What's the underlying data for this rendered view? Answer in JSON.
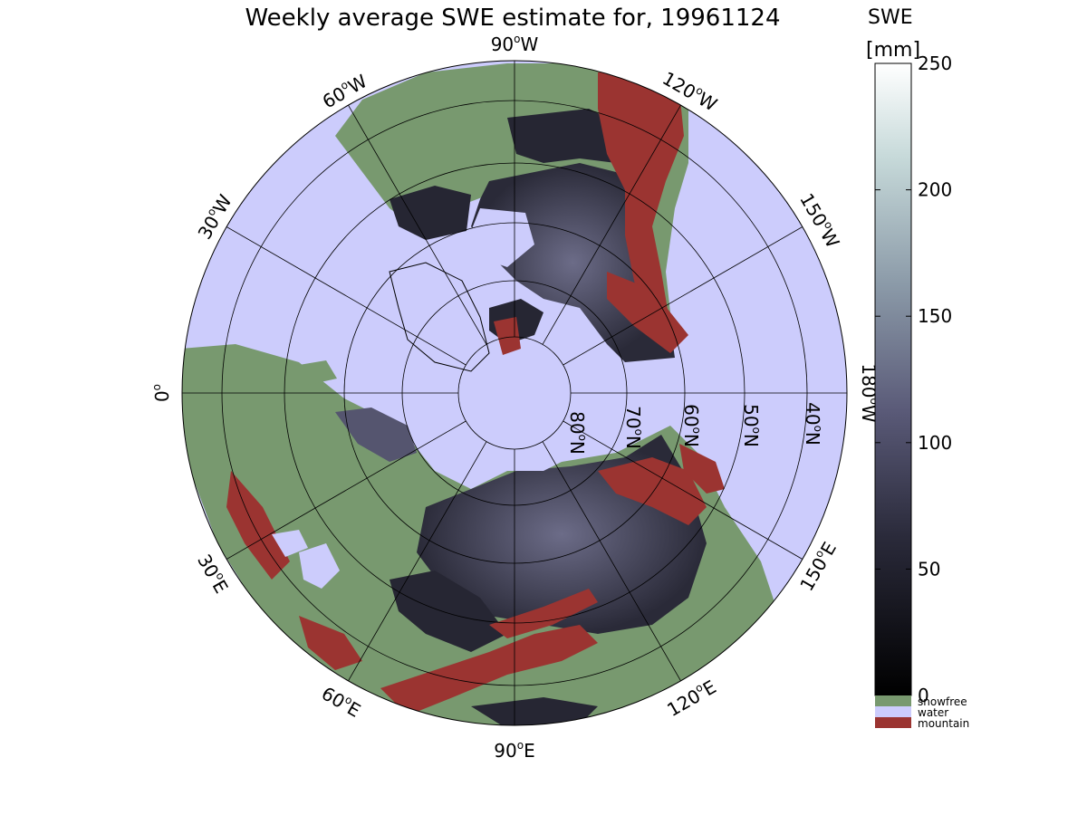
{
  "figure": {
    "title": "Weekly average SWE estimate for, 19961124"
  },
  "map": {
    "projection": "north polar stereographic",
    "longitude_labels": [
      {
        "deg": "90",
        "dir": "W"
      },
      {
        "deg": "60",
        "dir": "W"
      },
      {
        "deg": "120",
        "dir": "W"
      },
      {
        "deg": "30",
        "dir": "W"
      },
      {
        "deg": "150",
        "dir": "W"
      },
      {
        "deg": "0",
        "dir": ""
      },
      {
        "deg": "180",
        "dir": "W"
      },
      {
        "deg": "30",
        "dir": "E"
      },
      {
        "deg": "150",
        "dir": "E"
      },
      {
        "deg": "60",
        "dir": "E"
      },
      {
        "deg": "120",
        "dir": "E"
      },
      {
        "deg": "90",
        "dir": "E"
      }
    ],
    "latitude_labels": [
      {
        "deg": "80",
        "dir": "N"
      },
      {
        "deg": "70",
        "dir": "N"
      },
      {
        "deg": "60",
        "dir": "N"
      },
      {
        "deg": "50",
        "dir": "N"
      },
      {
        "deg": "40",
        "dir": "N"
      }
    ]
  },
  "colorbar": {
    "label_line1": "SWE",
    "label_line2": "[mm]",
    "ticks": [
      "250",
      "200",
      "150",
      "100",
      "50",
      "0"
    ],
    "range": [
      0,
      250
    ],
    "colormap": "bone"
  },
  "legend": {
    "items": [
      {
        "label": "snowfree",
        "color": "#78996f"
      },
      {
        "label": "water",
        "color": "#ccccfc"
      },
      {
        "label": "mountain",
        "color": "#9b3431"
      }
    ]
  },
  "colors": {
    "ocean": "#ccccfc",
    "land_snowfree": "#78996f",
    "mountain": "#9b3431",
    "snow_dark": "#262633",
    "snow_mid": "#55556f"
  }
}
